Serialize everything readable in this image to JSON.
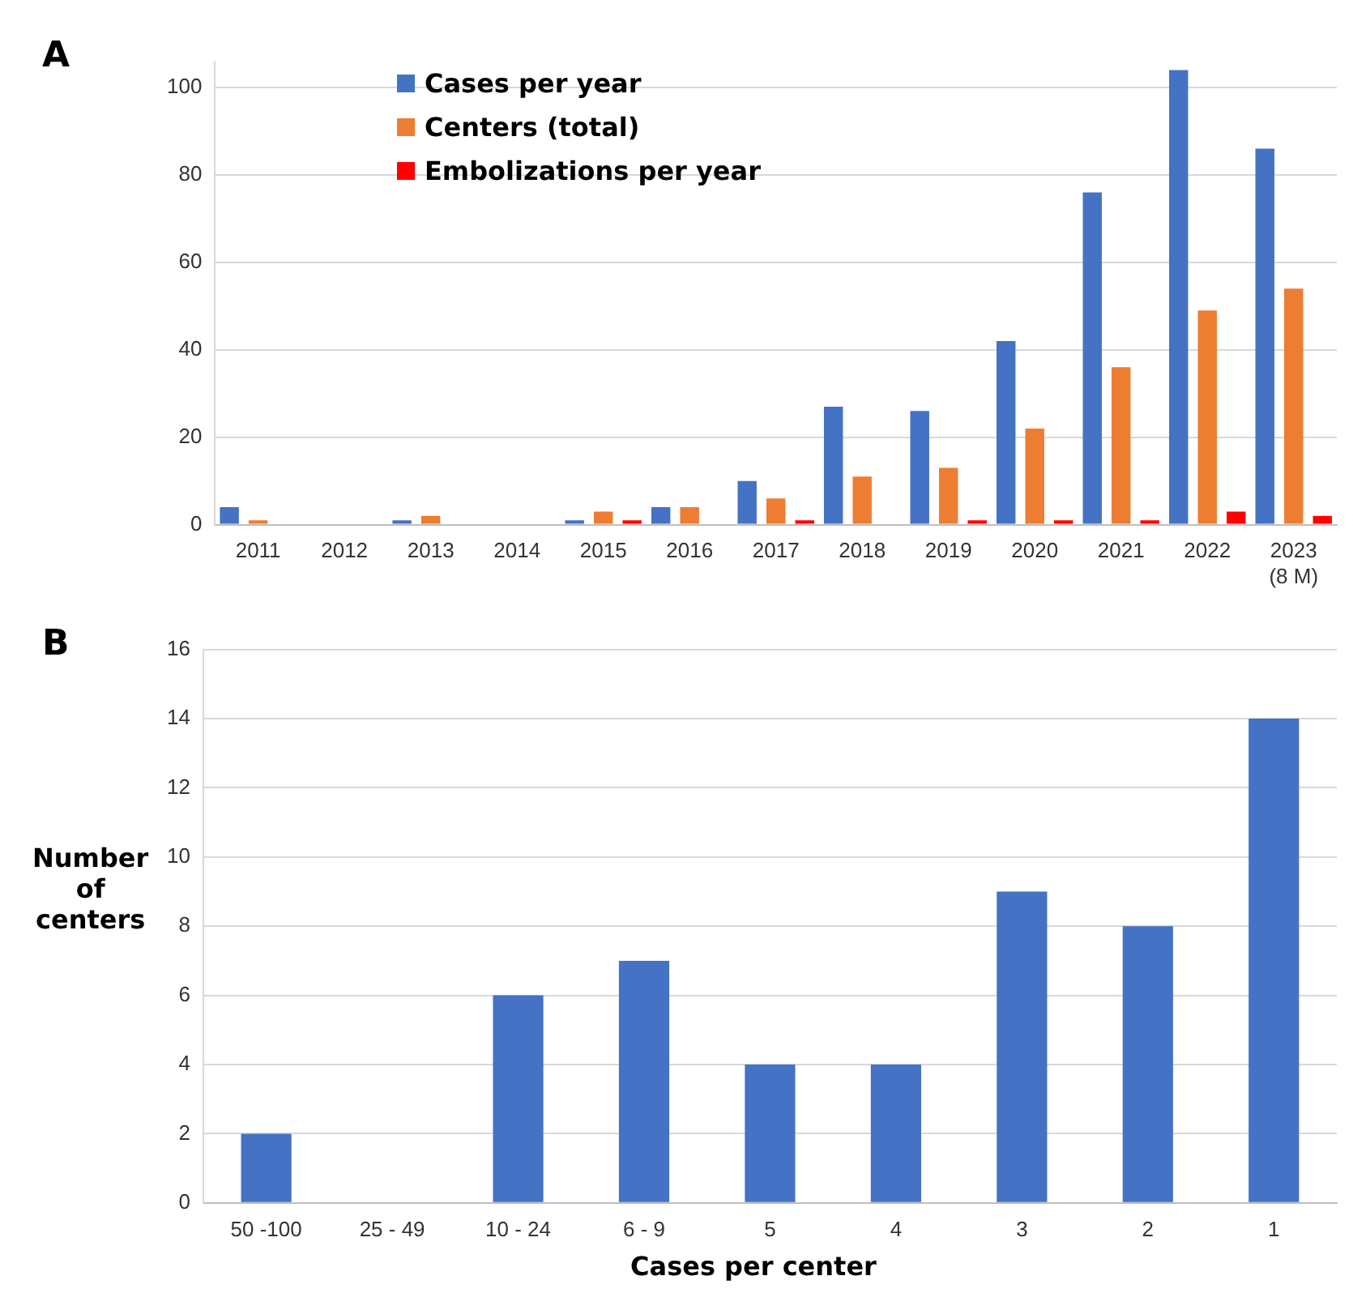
{
  "chart_data": [
    {
      "type": "bar",
      "title": "A",
      "categories": [
        "2011",
        "2012",
        "2013",
        "2014",
        "2015",
        "2016",
        "2017",
        "2018",
        "2019",
        "2020",
        "2021",
        "2022",
        "2023\n(8 M)"
      ],
      "series": [
        {
          "name": "Cases per year",
          "color": "#4472c4",
          "values": [
            4,
            0,
            1,
            0,
            1,
            4,
            10,
            27,
            26,
            42,
            76,
            104,
            86
          ]
        },
        {
          "name": "Centers (total)",
          "color": "#ed7d31",
          "values": [
            1,
            0,
            2,
            0,
            3,
            4,
            6,
            11,
            13,
            22,
            36,
            49,
            54
          ]
        },
        {
          "name": "Embolizations per year",
          "color": "#ff0000",
          "values": [
            0,
            0,
            0,
            0,
            1,
            0,
            1,
            0,
            1,
            1,
            1,
            3,
            2
          ]
        }
      ],
      "ylim": [
        0,
        106
      ],
      "yticks": [
        0,
        20,
        40,
        60,
        80,
        100
      ],
      "grid": "y",
      "legend": "top left"
    },
    {
      "type": "bar",
      "title": "B",
      "xlabel": "Cases per center",
      "ylabel": "Number\nof\ncenters",
      "categories": [
        "50 -100",
        "25 - 49",
        "10 - 24",
        "6 - 9",
        "5",
        "4",
        "3",
        "2",
        "1"
      ],
      "values": [
        2,
        0,
        6,
        7,
        4,
        4,
        9,
        8,
        14
      ],
      "color": "#4472c4",
      "ylim": [
        0,
        16
      ],
      "yticks": [
        0,
        2,
        4,
        6,
        8,
        10,
        12,
        14,
        16
      ],
      "grid": "y"
    }
  ]
}
